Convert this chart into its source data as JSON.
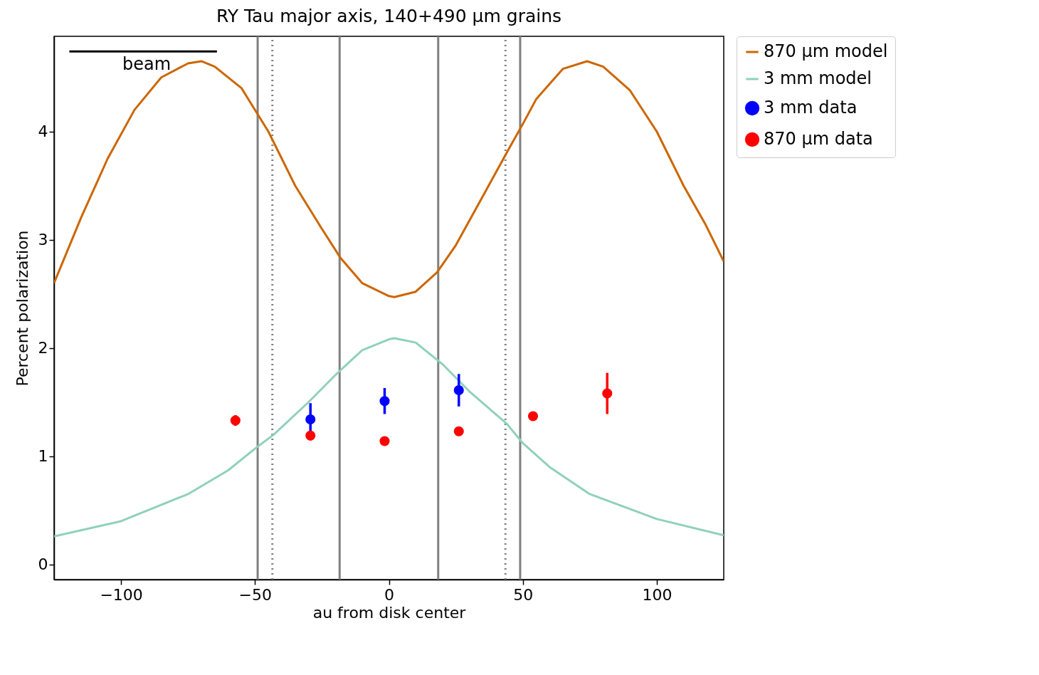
{
  "chart_data": {
    "type": "line",
    "title": "RY Tau major axis, 140+490 μm grains",
    "xlabel": "au from disk center",
    "ylabel": "Percent polarization",
    "xlim": [
      -125,
      125
    ],
    "ylim": [
      -0.14,
      4.88
    ],
    "xticks": [
      -100,
      -50,
      0,
      50,
      100
    ],
    "yticks": [
      0,
      1,
      2,
      3,
      4
    ],
    "grid": false,
    "legend": "top right",
    "series": [
      {
        "name": "870 μm model",
        "color": "#cc6600",
        "x": [
          -125,
          -115,
          -105,
          -95,
          -85,
          -75,
          -70,
          -65,
          -55,
          -45,
          -35,
          -25,
          -18,
          -10,
          0,
          2,
          10,
          18,
          25,
          35,
          45,
          50,
          55,
          65,
          74,
          80,
          90,
          100,
          110,
          118,
          125
        ],
        "values": [
          2.6,
          3.2,
          3.75,
          4.2,
          4.5,
          4.63,
          4.65,
          4.6,
          4.4,
          4.0,
          3.5,
          3.1,
          2.83,
          2.6,
          2.48,
          2.47,
          2.52,
          2.7,
          2.95,
          3.4,
          3.85,
          4.07,
          4.3,
          4.58,
          4.65,
          4.6,
          4.38,
          4.0,
          3.5,
          3.15,
          2.8
        ]
      },
      {
        "name": "3 mm model",
        "color": "#8fd1bb",
        "x": [
          -125,
          -100,
          -75,
          -60,
          -50,
          -43,
          -30,
          -20,
          -10,
          0,
          2,
          10,
          20,
          30,
          44,
          50,
          60,
          75,
          100,
          125
        ],
        "values": [
          0.26,
          0.4,
          0.65,
          0.87,
          1.07,
          1.2,
          1.5,
          1.75,
          1.98,
          2.08,
          2.09,
          2.05,
          1.85,
          1.6,
          1.3,
          1.12,
          0.9,
          0.65,
          0.42,
          0.27
        ]
      },
      {
        "name": "3 mm data",
        "type": "scatter",
        "marker": "circle",
        "color": "#0000ff",
        "x": [
          -29.3,
          -1.6,
          26.1
        ],
        "values": [
          1.34,
          1.51,
          1.61
        ],
        "errors": [
          0.15,
          0.12,
          0.15
        ]
      },
      {
        "name": "870 μm data",
        "type": "scatter",
        "marker": "circle",
        "color": "#ff0000",
        "x": [
          -57.3,
          -29.3,
          -1.6,
          26.1,
          53.8,
          81.5
        ],
        "values": [
          1.33,
          1.19,
          1.14,
          1.23,
          1.37,
          1.58
        ],
        "errors": [
          0.05,
          null,
          null,
          null,
          null,
          0.19
        ]
      },
      {
        "color": "#000000",
        "x": [
          -119.3,
          -64.2
        ],
        "values": [
          4.74,
          4.74
        ]
      }
    ],
    "ref_lines": [
      {
        "axis": "x",
        "value": -49,
        "color": "#808080",
        "line_style": "solid"
      },
      {
        "axis": "x",
        "value": -18.4,
        "color": "#808080",
        "line_style": "solid"
      },
      {
        "axis": "x",
        "value": 18.4,
        "color": "#808080",
        "line_style": "solid"
      },
      {
        "axis": "x",
        "value": 49,
        "color": "#808080",
        "line_style": "solid"
      },
      {
        "axis": "x",
        "value": -43.5,
        "color": "#808080",
        "line_style": "dotted"
      },
      {
        "axis": "x",
        "value": 43.5,
        "color": "#808080",
        "line_style": "dotted"
      }
    ],
    "annotations": [
      "beam"
    ]
  }
}
